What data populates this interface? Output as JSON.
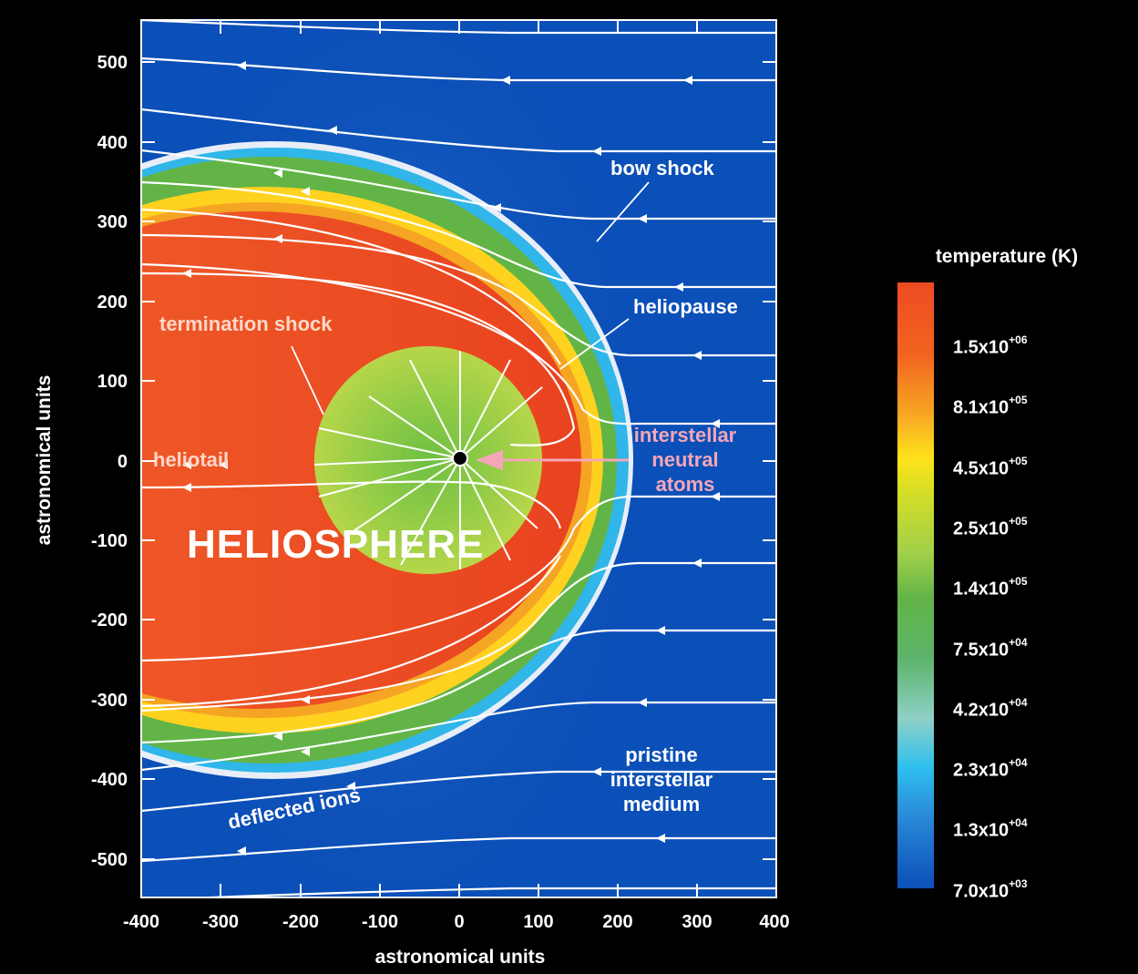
{
  "chart_data": {
    "type": "heatmap",
    "xlabel": "astronomical units",
    "ylabel": "astronomical units",
    "xlim": [
      -400,
      400
    ],
    "ylim": [
      -550,
      550
    ],
    "x_ticks": [
      "-400",
      "-300",
      "-200",
      "-100",
      "0",
      "100",
      "200",
      "300",
      "400"
    ],
    "y_ticks": [
      "500",
      "400",
      "300",
      "200",
      "100",
      "0",
      "-100",
      "-200",
      "-300",
      "-400",
      "-500"
    ],
    "colorbar": {
      "title": "temperature (K)",
      "mantissas": [
        "1.5x10",
        "8.1x10",
        "4.5x10",
        "2.5x10",
        "1.4x10",
        "7.5x10",
        "4.2x10",
        "2.3x10",
        "1.3x10",
        "7.0x10"
      ],
      "exponents": [
        "+06",
        "+05",
        "+05",
        "+05",
        "+05",
        "+04",
        "+04",
        "+04",
        "+04",
        "+03"
      ],
      "values": [
        1500000,
        810000,
        450000,
        250000,
        140000,
        75000,
        42000,
        23000,
        13000,
        7000
      ]
    },
    "annotations": {
      "heliosphere": "HELIOSPHERE",
      "termination_shock": "termination shock",
      "heliotail": "heliotail",
      "bow_shock": "bow shock",
      "heliopause": "heliopause",
      "interstellar_neutral_atoms": [
        "interstellar",
        "neutral",
        "atoms"
      ],
      "pristine_medium": [
        "pristine",
        "interstellar",
        "medium"
      ],
      "deflected_ions": "deflected ions"
    },
    "colors": {
      "background_medium": "#0b4fb8",
      "heliosheath": "#ee4b23",
      "inner_heliosphere": "#9fcf4a",
      "ring_yellow": "#ffd21f",
      "ring_green": "#62b447",
      "ring_cyan": "#30b6e8",
      "sun": "#000000",
      "arrow_atoms": "#f4a6b8"
    }
  }
}
